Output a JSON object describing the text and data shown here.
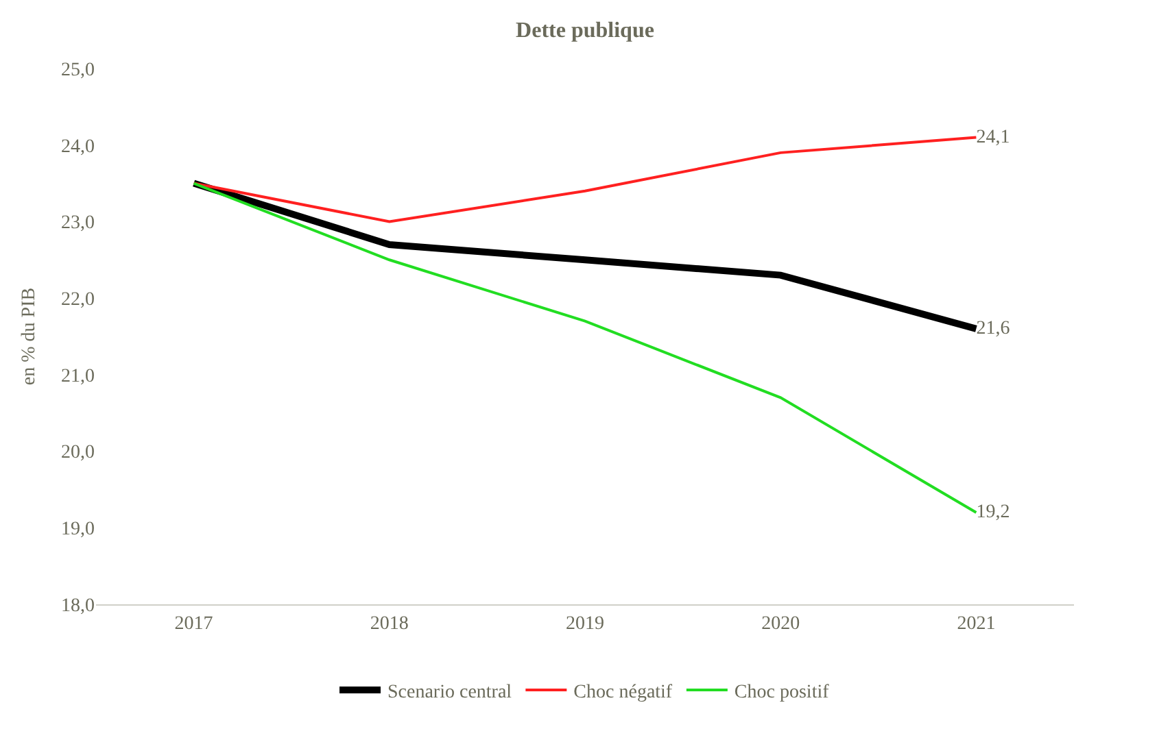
{
  "chart_data": {
    "type": "line",
    "title": "Dette publique",
    "ylabel": "en % du PIB",
    "categories": [
      "2017",
      "2018",
      "2019",
      "2020",
      "2021"
    ],
    "ylim": [
      18,
      25
    ],
    "yticks": [
      {
        "value": 18,
        "label": "18,0"
      },
      {
        "value": 19,
        "label": "19,0"
      },
      {
        "value": 20,
        "label": "20,0"
      },
      {
        "value": 21,
        "label": "21,0"
      },
      {
        "value": 22,
        "label": "22,0"
      },
      {
        "value": 23,
        "label": "23,0"
      },
      {
        "value": 24,
        "label": "24,0"
      },
      {
        "value": 25,
        "label": "25,0"
      }
    ],
    "legend": "bottom",
    "marker": "none",
    "line_style": "solid",
    "series": [
      {
        "name": "Scenario central",
        "color": "#000000",
        "values": [
          23.5,
          22.7,
          22.5,
          22.3,
          21.6
        ],
        "value_labels": [
          null,
          null,
          null,
          null,
          "21,6"
        ]
      },
      {
        "name": "Choc négatif",
        "color": "#ff2020",
        "values": [
          23.5,
          23.0,
          23.4,
          23.9,
          24.1
        ],
        "value_labels": [
          null,
          null,
          null,
          null,
          "24,1"
        ]
      },
      {
        "name": "Choc positif",
        "color": "#22dd22",
        "values": [
          23.5,
          22.5,
          21.7,
          20.7,
          19.2
        ],
        "value_labels": [
          null,
          null,
          null,
          null,
          "19,2"
        ]
      }
    ]
  }
}
